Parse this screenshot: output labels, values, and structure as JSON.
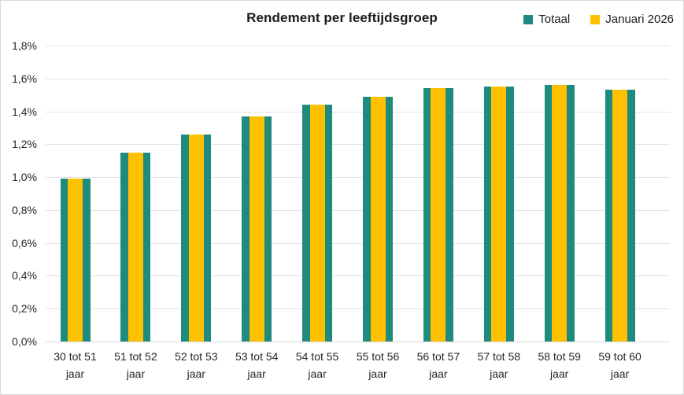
{
  "chart_data": {
    "type": "bar",
    "title": "Rendement per leeftijdsgroep",
    "categories": [
      "30 tot 51 jaar",
      "51 tot 52 jaar",
      "52 tot 53 jaar",
      "53 tot 54 jaar",
      "54 tot 55 jaar",
      "55 tot 56 jaar",
      "56 tot 57 jaar",
      "57 tot 58 jaar",
      "58 tot 59 jaar",
      "59 tot 60 jaar"
    ],
    "series": [
      {
        "name": "Totaal",
        "color": "#1F8A7E",
        "values": [
          0.99,
          1.15,
          1.26,
          1.37,
          1.44,
          1.49,
          1.54,
          1.55,
          1.56,
          1.53
        ]
      },
      {
        "name": "Januari 2026",
        "color": "#FFC000",
        "values": [
          0.99,
          1.15,
          1.26,
          1.37,
          1.44,
          1.49,
          1.54,
          1.55,
          1.56,
          1.53
        ]
      }
    ],
    "xlabel": "",
    "ylabel": "",
    "ylim": [
      0,
      1.8
    ],
    "ytick_step": 0.2,
    "yticks": [
      "0,0%",
      "0,2%",
      "0,4%",
      "0,6%",
      "0,8%",
      "1,0%",
      "1,2%",
      "1,4%",
      "1,6%",
      "1,8%"
    ],
    "value_unit": "percent",
    "bar_style": "overlapped",
    "legend_position": "top-right",
    "grid": "horizontal"
  }
}
